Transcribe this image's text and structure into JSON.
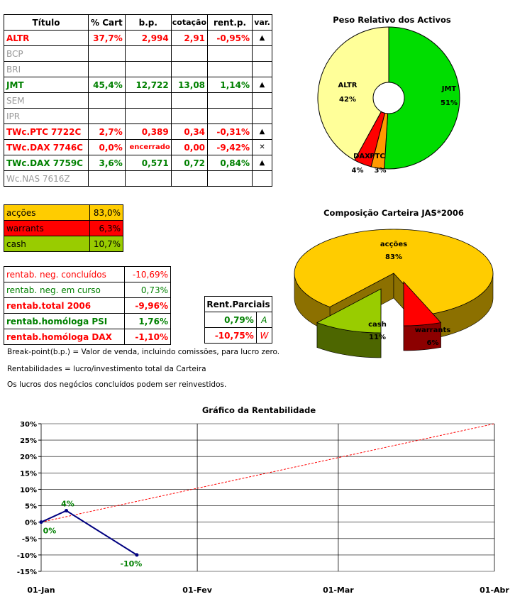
{
  "holdings": {
    "headers": [
      "Título",
      "% Cart",
      "b.p.",
      "cotação",
      "rent.p.",
      "var."
    ],
    "rows": [
      {
        "name": "ALTR",
        "cart": "37,7%",
        "bp": "2,994",
        "cot": "2,91",
        "rent": "-0,95%",
        "var": "▲",
        "style": "red"
      },
      {
        "name": "BCP",
        "cart": "",
        "bp": "",
        "cot": "",
        "rent": "",
        "var": "",
        "style": "gry"
      },
      {
        "name": "BRI",
        "cart": "",
        "bp": "",
        "cot": "",
        "rent": "",
        "var": "",
        "style": "gry"
      },
      {
        "name": "JMT",
        "cart": "45,4%",
        "bp": "12,722",
        "cot": "13,08",
        "rent": "1,14%",
        "var": "▲",
        "style": "grn"
      },
      {
        "name": "SEM",
        "cart": "",
        "bp": "",
        "cot": "",
        "rent": "",
        "var": "",
        "style": "gry"
      },
      {
        "name": "IPR",
        "cart": "",
        "bp": "",
        "cot": "",
        "rent": "",
        "var": "",
        "style": "gry"
      },
      {
        "name": "TWc.PTC 7722C",
        "cart": "2,7%",
        "bp": "0,389",
        "cot": "0,34",
        "rent": "-0,31%",
        "var": "▲",
        "style": "red"
      },
      {
        "name": "TWc.DAX 7746C",
        "cart": "0,0%",
        "bp": "encerrado",
        "cot": "0,00",
        "rent": "-9,42%",
        "var": "✕",
        "style": "red"
      },
      {
        "name": "TWc.DAX 7759C",
        "cart": "3,6%",
        "bp": "0,571",
        "cot": "0,72",
        "rent": "0,84%",
        "var": "▲",
        "style": "grn"
      },
      {
        "name": "Wc.NAS 7616Z",
        "cart": "",
        "bp": "",
        "cot": "",
        "rent": "",
        "var": "",
        "style": "gry"
      }
    ]
  },
  "allocation": [
    {
      "label": "acções",
      "value": "83,0%",
      "color": "#FFCC00"
    },
    {
      "label": "warrants",
      "value": "6,3%",
      "color": "#FF0000"
    },
    {
      "label": "cash",
      "value": "10,7%",
      "color": "#99CC00"
    }
  ],
  "returns": [
    {
      "label": "rentab. neg. concluídos",
      "value": "-10,69%",
      "style": "redn"
    },
    {
      "label": "rentab. neg. em curso",
      "value": "0,73%",
      "style": "grnn"
    },
    {
      "label": "rentab.total 2006",
      "value": "-9,96%",
      "style": "red"
    },
    {
      "label": "rentab.homóloga PSI",
      "value": "1,76%",
      "style": "grn"
    },
    {
      "label": "rentab.homóloga DAX",
      "value": "-1,10%",
      "style": "red"
    }
  ],
  "partial": {
    "title": "Rent.Parciais",
    "rows": [
      {
        "value": "0,79%",
        "tag": "A",
        "style": "grn"
      },
      {
        "value": "-10,75%",
        "tag": "W",
        "style": "red"
      }
    ]
  },
  "notes": [
    "Break-point(b.p.) = Valor de venda, incluindo comissões, para lucro zero.",
    "Rentabilidades = lucro/investimento total da Carteira",
    "Os lucros dos negócios concluídos podem ser reinvestidos."
  ],
  "chart_data": [
    {
      "type": "pie",
      "title": "Peso Relativo dos Activos",
      "donut": true,
      "categories": [
        "JMT",
        "PTC",
        "DAX",
        "ALTR"
      ],
      "values": [
        51,
        3,
        4,
        42
      ],
      "labels": [
        "51%",
        "3%",
        "4%",
        "42%"
      ],
      "colors": [
        "#00DD00",
        "#FF9900",
        "#FF0000",
        "#FFFF99"
      ]
    },
    {
      "type": "pie",
      "title": "Composição Carteira JAS*2006",
      "3d": true,
      "categories": [
        "acções",
        "warrants",
        "cash"
      ],
      "values": [
        83,
        6,
        11
      ],
      "labels": [
        "83%",
        "6%",
        "11%"
      ],
      "colors": [
        "#FFCC00",
        "#FF0000",
        "#99CC00"
      ],
      "exploded": [
        "warrants",
        "cash"
      ]
    },
    {
      "type": "line",
      "title": "Gráfico da Rentabilidade",
      "x": [
        "2006-01-01",
        "2006-01-06",
        "2006-01-20"
      ],
      "y": [
        0,
        3.5,
        -10
      ],
      "point_labels": [
        "0%",
        "4%",
        "-10%"
      ],
      "line_color": "#000080",
      "target_line": {
        "x": [
          "2006-01-01",
          "2006-04-01"
        ],
        "y": [
          0,
          30
        ],
        "color": "#FF0000",
        "style": "dashed"
      },
      "ylim": [
        -15,
        30
      ],
      "yticks": [
        "30%",
        "25%",
        "20%",
        "15%",
        "10%",
        "5%",
        "0%",
        "-5%",
        "-10%",
        "-15%"
      ],
      "xticks": [
        "01-Jan",
        "01-Fev",
        "01-Mar",
        "01-Abr"
      ],
      "grid": true
    }
  ]
}
